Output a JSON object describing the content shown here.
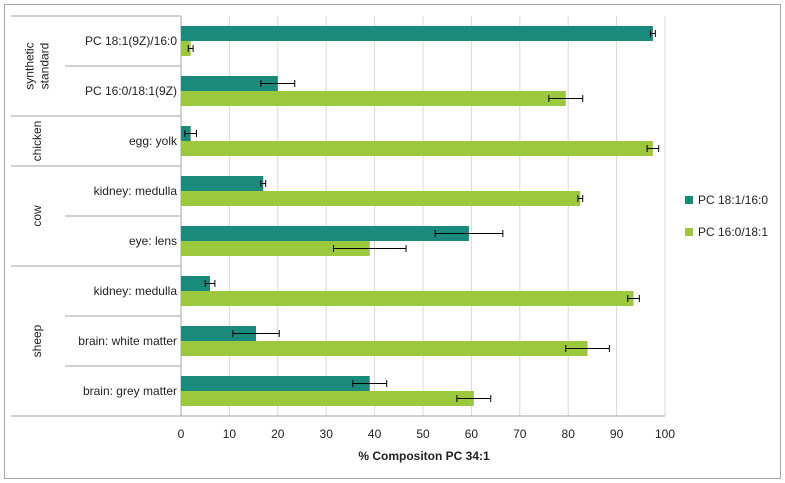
{
  "chart_data": {
    "type": "bar",
    "orientation": "horizontal",
    "xlabel": "% Compositon PC 34:1",
    "xlim": [
      0,
      100
    ],
    "xticks": [
      0,
      10,
      20,
      30,
      40,
      50,
      60,
      70,
      80,
      90,
      100
    ],
    "grid": true,
    "legend_position": "right",
    "categories": [
      "PC 18:1(9Z)/16:0",
      "PC 16:0/18:1(9Z)",
      "egg: yolk",
      "kidney: medulla",
      "eye: lens",
      "kidney: medulla",
      "brain: white matter",
      "brain: grey matter"
    ],
    "groups": [
      {
        "label": [
          "synthetic",
          "standard"
        ],
        "from": 0,
        "to": 1
      },
      {
        "label": [
          "chicken"
        ],
        "from": 2,
        "to": 2
      },
      {
        "label": [
          "cow"
        ],
        "from": 3,
        "to": 4
      },
      {
        "label": [
          "sheep"
        ],
        "from": 5,
        "to": 7
      }
    ],
    "series": [
      {
        "name": "PC 18:1/16:0",
        "color": "#1a8a7c",
        "values": [
          97.5,
          20,
          2,
          17,
          59.5,
          6,
          15.5,
          39
        ],
        "errors": [
          0.5,
          3.5,
          1.2,
          0.5,
          7,
          1,
          4.8,
          3.5
        ]
      },
      {
        "name": "PC 16:0/18:1",
        "color": "#9bc83c",
        "values": [
          2,
          79.5,
          97.5,
          82.5,
          39,
          93.5,
          84,
          60.5
        ],
        "errors": [
          0.5,
          3.5,
          1.2,
          0.5,
          7.5,
          1.2,
          4.5,
          3.5
        ]
      }
    ]
  }
}
